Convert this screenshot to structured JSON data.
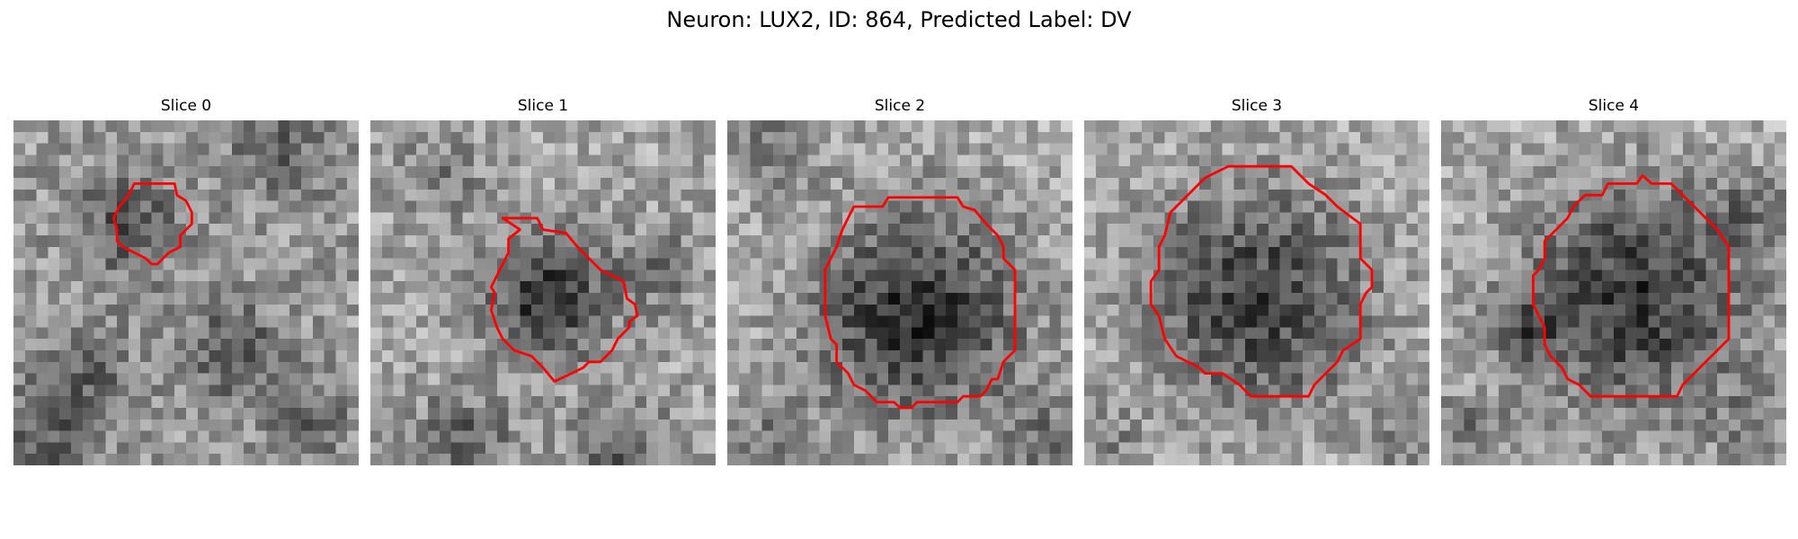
{
  "figure": {
    "title": "Neuron: LUX2, ID: 864, Predicted Label: DV"
  },
  "panels": [
    {
      "title": "Slice 0"
    },
    {
      "title": "Slice 1"
    },
    {
      "title": "Slice 2"
    },
    {
      "title": "Slice 3"
    },
    {
      "title": "Slice 4"
    }
  ],
  "colors": {
    "contour": "#ff0000",
    "background": "#ffffff"
  }
}
